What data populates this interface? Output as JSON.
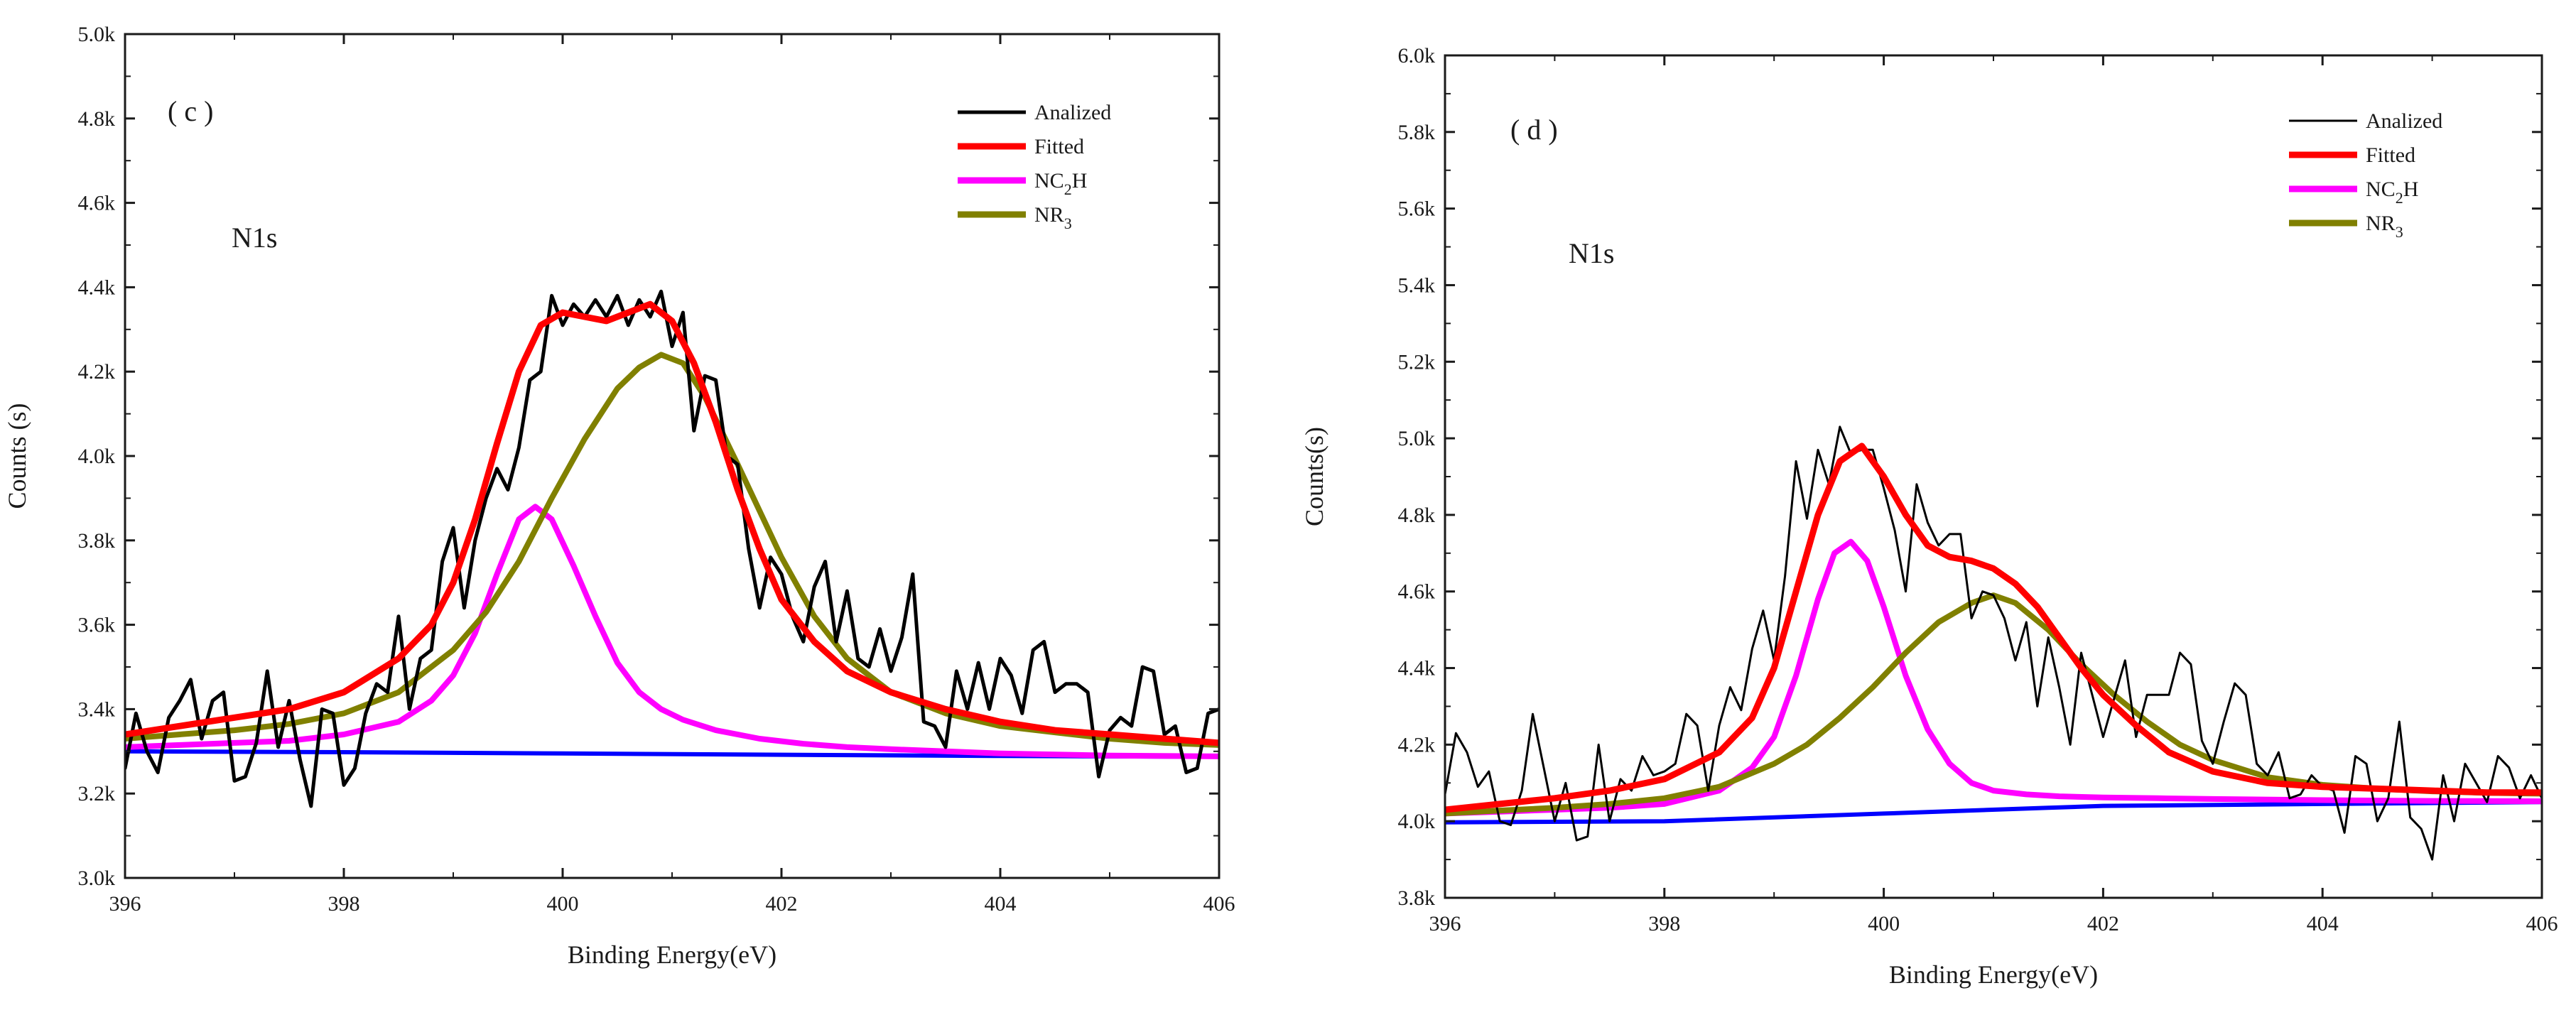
{
  "chart_data": [
    {
      "type": "line",
      "panel": "( c )",
      "peak_label": "N1s",
      "xlabel": "Binding Energy(eV)",
      "ylabel": "Counts (s)",
      "xlim": [
        396,
        406
      ],
      "ylim": [
        3000,
        5000
      ],
      "xticks": [
        "396",
        "398",
        "400",
        "402",
        "404",
        "406"
      ],
      "xtick_values": [
        396,
        398,
        400,
        402,
        404,
        406
      ],
      "yticks": [
        "3.0k",
        "3.2k",
        "3.4k",
        "3.6k",
        "3.8k",
        "4.0k",
        "4.2k",
        "4.4k",
        "4.6k",
        "4.8k",
        "5.0k"
      ],
      "ytick_values": [
        3000,
        3200,
        3400,
        3600,
        3800,
        4000,
        4200,
        4400,
        4600,
        4800,
        5000
      ],
      "legend": [
        {
          "label": "Analized",
          "color": "#000000"
        },
        {
          "label": "Fitted",
          "color": "#ff0000"
        },
        {
          "label": "NC2H",
          "main": "NC",
          "sub": "2",
          "tail": "H",
          "color": "#ff00ff"
        },
        {
          "label": "NR3",
          "main": "NR",
          "sub": "3",
          "tail": "",
          "color": "#808000"
        }
      ],
      "series": [
        {
          "name": "Analized",
          "color": "#000000",
          "x": [
            396.0,
            396.1,
            396.2,
            396.3,
            396.4,
            396.5,
            396.6,
            396.7,
            396.8,
            396.9,
            397.0,
            397.1,
            397.2,
            397.3,
            397.4,
            397.5,
            397.6,
            397.7,
            397.8,
            397.9,
            398.0,
            398.1,
            398.2,
            398.3,
            398.4,
            398.5,
            398.6,
            398.7,
            398.8,
            398.9,
            399.0,
            399.1,
            399.2,
            399.3,
            399.4,
            399.5,
            399.6,
            399.7,
            399.8,
            399.9,
            400.0,
            400.1,
            400.2,
            400.3,
            400.4,
            400.5,
            400.6,
            400.7,
            400.8,
            400.9,
            401.0,
            401.1,
            401.2,
            401.3,
            401.4,
            401.5,
            401.6,
            401.7,
            401.8,
            401.9,
            402.0,
            402.1,
            402.2,
            402.3,
            402.4,
            402.5,
            402.6,
            402.7,
            402.8,
            402.9,
            403.0,
            403.1,
            403.2,
            403.3,
            403.4,
            403.5,
            403.6,
            403.7,
            403.8,
            403.9,
            404.0,
            404.1,
            404.2,
            404.3,
            404.4,
            404.5,
            404.6,
            404.7,
            404.8,
            404.9,
            405.0,
            405.1,
            405.2,
            405.3,
            405.4,
            405.5,
            405.6,
            405.7,
            405.8,
            405.9,
            406.0
          ],
          "y": [
            3260,
            3390,
            3300,
            3250,
            3380,
            3420,
            3470,
            3330,
            3420,
            3440,
            3230,
            3240,
            3320,
            3490,
            3310,
            3420,
            3280,
            3170,
            3400,
            3390,
            3220,
            3260,
            3390,
            3460,
            3440,
            3620,
            3400,
            3520,
            3540,
            3750,
            3830,
            3640,
            3800,
            3900,
            3970,
            3920,
            4020,
            4180,
            4200,
            4380,
            4310,
            4360,
            4330,
            4370,
            4330,
            4380,
            4310,
            4370,
            4330,
            4390,
            4260,
            4340,
            4060,
            4190,
            4180,
            4000,
            3980,
            3780,
            3640,
            3760,
            3720,
            3620,
            3560,
            3690,
            3750,
            3560,
            3680,
            3520,
            3500,
            3590,
            3490,
            3570,
            3720,
            3370,
            3360,
            3310,
            3490,
            3400,
            3510,
            3400,
            3520,
            3480,
            3390,
            3540,
            3560,
            3440,
            3460,
            3460,
            3440,
            3240,
            3350,
            3380,
            3360,
            3500,
            3490,
            3340,
            3360,
            3250,
            3260,
            3390,
            3400
          ]
        },
        {
          "name": "Fitted",
          "color": "#ff0000",
          "x": [
            396.0,
            396.5,
            397.0,
            397.5,
            398.0,
            398.5,
            398.8,
            399.0,
            399.2,
            399.4,
            399.6,
            399.8,
            400.0,
            400.2,
            400.4,
            400.6,
            400.8,
            401.0,
            401.2,
            401.4,
            401.6,
            401.8,
            402.0,
            402.3,
            402.6,
            403.0,
            403.5,
            404.0,
            404.5,
            405.0,
            405.5,
            406.0
          ],
          "y": [
            3340,
            3360,
            3380,
            3400,
            3440,
            3520,
            3600,
            3700,
            3850,
            4030,
            4200,
            4310,
            4340,
            4330,
            4320,
            4340,
            4360,
            4320,
            4220,
            4080,
            3920,
            3780,
            3660,
            3560,
            3490,
            3440,
            3400,
            3370,
            3350,
            3340,
            3330,
            3320
          ]
        },
        {
          "name": "NC2H",
          "color": "#ff00ff",
          "x": [
            396.0,
            396.5,
            397.0,
            397.5,
            398.0,
            398.5,
            398.8,
            399.0,
            399.2,
            399.4,
            399.6,
            399.75,
            399.9,
            400.1,
            400.3,
            400.5,
            400.7,
            400.9,
            401.1,
            401.4,
            401.8,
            402.2,
            402.6,
            403.0,
            403.5,
            404.0,
            405.0,
            406.0
          ],
          "y": [
            3310,
            3315,
            3320,
            3325,
            3340,
            3370,
            3420,
            3480,
            3580,
            3720,
            3850,
            3880,
            3850,
            3740,
            3620,
            3510,
            3440,
            3400,
            3375,
            3350,
            3330,
            3318,
            3310,
            3305,
            3300,
            3295,
            3290,
            3288
          ]
        },
        {
          "name": "NR3",
          "color": "#808000",
          "x": [
            396.0,
            396.5,
            397.0,
            397.5,
            398.0,
            398.5,
            399.0,
            399.3,
            399.6,
            399.9,
            400.2,
            400.5,
            400.7,
            400.9,
            401.1,
            401.3,
            401.6,
            402.0,
            402.3,
            402.6,
            403.0,
            403.5,
            404.0,
            404.5,
            405.0,
            405.5,
            406.0
          ],
          "y": [
            3330,
            3340,
            3350,
            3365,
            3390,
            3440,
            3540,
            3630,
            3750,
            3900,
            4040,
            4160,
            4210,
            4240,
            4220,
            4140,
            3980,
            3760,
            3620,
            3520,
            3440,
            3390,
            3360,
            3345,
            3330,
            3320,
            3315
          ]
        },
        {
          "name": "Baseline",
          "color": "#0000ff",
          "x": [
            396.0,
            398.0,
            400.0,
            402.0,
            404.0,
            406.0
          ],
          "y": [
            3300,
            3298,
            3295,
            3292,
            3289,
            3287
          ]
        }
      ]
    },
    {
      "type": "line",
      "panel": "( d )",
      "peak_label": "N1s",
      "xlabel": "Binding Energy(eV)",
      "ylabel": "Counts(s)",
      "xlim": [
        396,
        406
      ],
      "ylim": [
        3800,
        6000
      ],
      "xticks": [
        "396",
        "398",
        "400",
        "402",
        "404",
        "406"
      ],
      "xtick_values": [
        396,
        398,
        400,
        402,
        404,
        406
      ],
      "yticks": [
        "3.8k",
        "4.0k",
        "4.2k",
        "4.4k",
        "4.6k",
        "4.8k",
        "5.0k",
        "5.2k",
        "5.4k",
        "5.6k",
        "5.8k",
        "6.0k"
      ],
      "ytick_values": [
        3800,
        4000,
        4200,
        4400,
        4600,
        4800,
        5000,
        5200,
        5400,
        5600,
        5800,
        6000
      ],
      "legend": [
        {
          "label": "Analized",
          "color": "#000000"
        },
        {
          "label": "Fitted",
          "color": "#ff0000"
        },
        {
          "label": "NC2H",
          "main": "NC",
          "sub": "2",
          "tail": "H",
          "color": "#ff00ff"
        },
        {
          "label": "NR3",
          "main": "NR",
          "sub": "3",
          "tail": "",
          "color": "#808000"
        }
      ],
      "series": [
        {
          "name": "Analized",
          "color": "#000000",
          "x": [
            396.0,
            396.1,
            396.2,
            396.3,
            396.4,
            396.5,
            396.6,
            396.7,
            396.8,
            396.9,
            397.0,
            397.1,
            397.2,
            397.3,
            397.4,
            397.5,
            397.6,
            397.7,
            397.8,
            397.9,
            398.0,
            398.1,
            398.2,
            398.3,
            398.4,
            398.5,
            398.6,
            398.7,
            398.8,
            398.9,
            399.0,
            399.1,
            399.2,
            399.3,
            399.4,
            399.5,
            399.6,
            399.7,
            399.8,
            399.9,
            400.0,
            400.1,
            400.2,
            400.3,
            400.4,
            400.5,
            400.6,
            400.7,
            400.8,
            400.9,
            401.0,
            401.1,
            401.2,
            401.3,
            401.4,
            401.5,
            401.6,
            401.7,
            401.8,
            401.9,
            402.0,
            402.1,
            402.2,
            402.3,
            402.4,
            402.5,
            402.6,
            402.7,
            402.8,
            402.9,
            403.0,
            403.1,
            403.2,
            403.3,
            403.4,
            403.5,
            403.6,
            403.7,
            403.8,
            403.9,
            404.0,
            404.1,
            404.2,
            404.3,
            404.4,
            404.5,
            404.6,
            404.7,
            404.8,
            404.9,
            405.0,
            405.1,
            405.2,
            405.3,
            405.4,
            405.5,
            405.6,
            405.7,
            405.8,
            405.9,
            406.0
          ],
          "y": [
            4070,
            4230,
            4180,
            4090,
            4130,
            4000,
            3990,
            4080,
            4280,
            4140,
            4000,
            4100,
            3950,
            3960,
            4200,
            4000,
            4110,
            4080,
            4170,
            4120,
            4130,
            4150,
            4280,
            4250,
            4080,
            4250,
            4350,
            4290,
            4450,
            4550,
            4420,
            4640,
            4940,
            4790,
            4970,
            4880,
            5030,
            4960,
            4970,
            4970,
            4870,
            4760,
            4600,
            4880,
            4780,
            4720,
            4750,
            4750,
            4530,
            4600,
            4590,
            4530,
            4420,
            4520,
            4300,
            4480,
            4350,
            4200,
            4440,
            4330,
            4220,
            4320,
            4420,
            4220,
            4330,
            4330,
            4330,
            4440,
            4410,
            4210,
            4150,
            4260,
            4360,
            4330,
            4150,
            4120,
            4180,
            4060,
            4070,
            4120,
            4090,
            4080,
            3970,
            4170,
            4150,
            4000,
            4060,
            4260,
            4010,
            3980,
            3900,
            4120,
            4000,
            4150,
            4100,
            4050,
            4170,
            4140,
            4060,
            4120,
            4060
          ]
        },
        {
          "name": "Fitted",
          "color": "#ff0000",
          "x": [
            396.0,
            396.5,
            397.0,
            397.5,
            398.0,
            398.5,
            398.8,
            399.0,
            399.2,
            399.4,
            399.6,
            399.8,
            400.0,
            400.2,
            400.4,
            400.6,
            400.8,
            401.0,
            401.2,
            401.4,
            401.6,
            401.8,
            402.0,
            402.3,
            402.6,
            403.0,
            403.5,
            404.0,
            404.5,
            405.0,
            405.5,
            406.0
          ],
          "y": [
            4030,
            4045,
            4060,
            4080,
            4110,
            4180,
            4270,
            4400,
            4600,
            4800,
            4940,
            4980,
            4900,
            4800,
            4720,
            4690,
            4680,
            4660,
            4620,
            4560,
            4480,
            4400,
            4330,
            4250,
            4180,
            4130,
            4100,
            4090,
            4085,
            4080,
            4075,
            4075
          ]
        },
        {
          "name": "NC2H",
          "color": "#ff00ff",
          "x": [
            396.0,
            396.5,
            397.0,
            397.5,
            398.0,
            398.5,
            398.8,
            399.0,
            399.2,
            399.4,
            399.55,
            399.7,
            399.85,
            400.0,
            400.2,
            400.4,
            400.6,
            400.8,
            401.0,
            401.3,
            401.6,
            402.0,
            402.5,
            403.0,
            404.0,
            405.0,
            406.0
          ],
          "y": [
            4020,
            4025,
            4030,
            4035,
            4045,
            4080,
            4140,
            4220,
            4380,
            4580,
            4700,
            4730,
            4680,
            4560,
            4380,
            4240,
            4150,
            4100,
            4080,
            4070,
            4065,
            4062,
            4060,
            4058,
            4055,
            4053,
            4052
          ]
        },
        {
          "name": "NR3",
          "color": "#808000",
          "x": [
            396.0,
            396.5,
            397.0,
            397.5,
            398.0,
            398.5,
            399.0,
            399.3,
            399.6,
            399.9,
            400.2,
            400.5,
            400.8,
            401.0,
            401.2,
            401.5,
            401.8,
            402.1,
            402.4,
            402.7,
            403.0,
            403.5,
            404.0,
            404.5,
            405.0,
            405.5,
            406.0
          ],
          "y": [
            4020,
            4028,
            4035,
            4045,
            4060,
            4090,
            4150,
            4200,
            4270,
            4350,
            4440,
            4520,
            4570,
            4590,
            4570,
            4500,
            4410,
            4330,
            4260,
            4200,
            4160,
            4115,
            4095,
            4085,
            4078,
            4074,
            4072
          ]
        },
        {
          "name": "Baseline",
          "color": "#0000ff",
          "x": [
            396.0,
            398.0,
            400.0,
            401.5,
            402.0,
            404.0,
            406.0
          ],
          "y": [
            3997,
            4000,
            4020,
            4035,
            4040,
            4045,
            4050
          ]
        }
      ]
    }
  ]
}
